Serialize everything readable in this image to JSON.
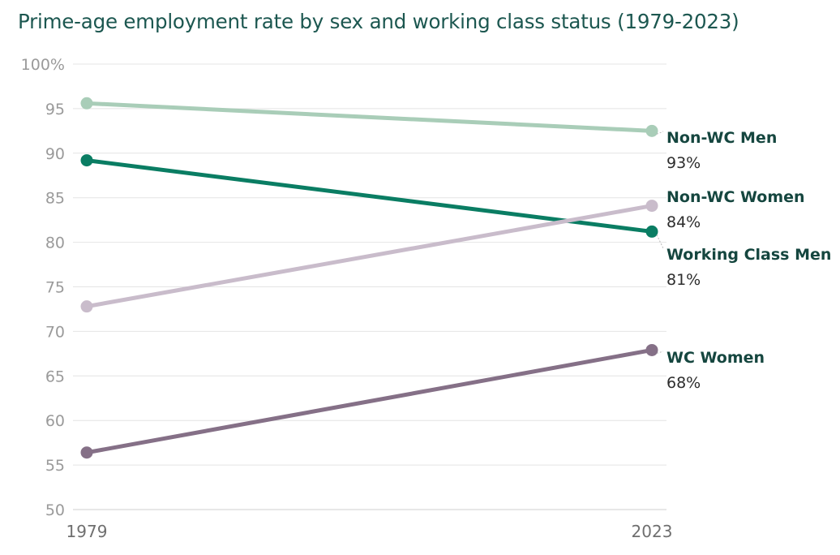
{
  "chart_data": {
    "type": "line",
    "title": "Prime-age employment rate by sex and working class status (1979-2023)",
    "x": [
      "1979",
      "2023"
    ],
    "ylim": [
      50,
      100
    ],
    "yticks": [
      "100%",
      "95",
      "90",
      "85",
      "80",
      "75",
      "70",
      "65",
      "60",
      "55",
      "50"
    ],
    "grid": true,
    "legend": "direct labels at right end of lines",
    "series": [
      {
        "name": "Non-WC Men",
        "values": [
          95.6,
          92.5
        ],
        "end_label": "93%",
        "color": "#a9cdb8"
      },
      {
        "name": "Working Class Men",
        "values": [
          89.2,
          81.2
        ],
        "end_label": "81%",
        "color": "#0a7d63"
      },
      {
        "name": "Non-WC Women",
        "values": [
          72.8,
          84.1
        ],
        "end_label": "84%",
        "color": "#c9bccb"
      },
      {
        "name": "WC Women",
        "values": [
          56.4,
          67.9
        ],
        "end_label": "68%",
        "color": "#857087"
      }
    ]
  }
}
